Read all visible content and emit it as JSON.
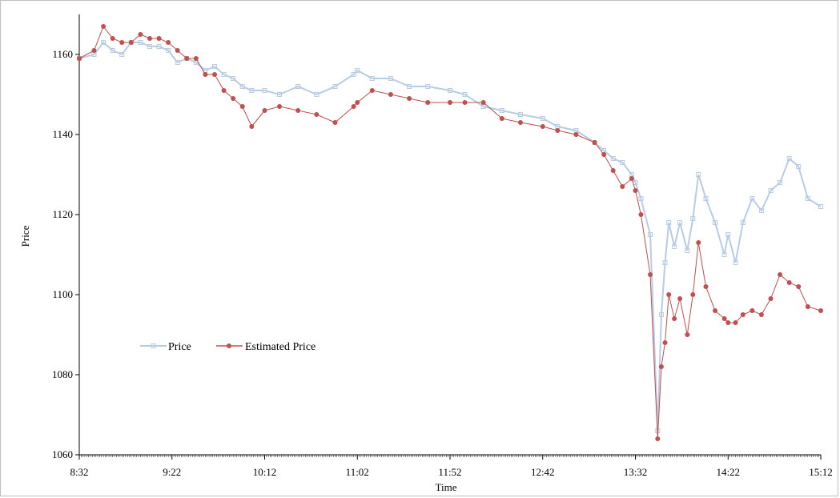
{
  "chart_data": {
    "type": "line",
    "title": "",
    "xlabel": "Time",
    "ylabel": "Price",
    "ylim": [
      1060,
      1170
    ],
    "y_ticks": [
      1060,
      1080,
      1100,
      1120,
      1140,
      1160
    ],
    "x_tick_labels": [
      "8:32",
      "9:22",
      "10:12",
      "11:02",
      "11:52",
      "12:42",
      "13:32",
      "14:22",
      "15:12"
    ],
    "x_range_minutes": [
      "8:32",
      "15:12"
    ],
    "grid": false,
    "legend_position": "left-middle",
    "series": [
      {
        "name": "Price",
        "color": "#b8cce4",
        "marker": "square",
        "x": [
          "8:32",
          "8:40",
          "8:45",
          "8:50",
          "8:55",
          "9:00",
          "9:05",
          "9:10",
          "9:15",
          "9:20",
          "9:25",
          "9:30",
          "9:35",
          "9:40",
          "9:45",
          "9:50",
          "9:55",
          "10:00",
          "10:05",
          "10:12",
          "10:20",
          "10:30",
          "10:40",
          "10:50",
          "11:00",
          "11:02",
          "11:10",
          "11:20",
          "11:30",
          "11:40",
          "11:52",
          "12:00",
          "12:10",
          "12:20",
          "12:30",
          "12:42",
          "12:50",
          "13:00",
          "13:10",
          "13:15",
          "13:20",
          "13:25",
          "13:30",
          "13:32",
          "13:35",
          "13:40",
          "13:44",
          "13:46",
          "13:48",
          "13:50",
          "13:53",
          "13:56",
          "14:00",
          "14:03",
          "14:06",
          "14:10",
          "14:15",
          "14:20",
          "14:22",
          "14:26",
          "14:30",
          "14:35",
          "14:40",
          "14:45",
          "14:50",
          "14:55",
          "15:00",
          "15:05",
          "15:12"
        ],
        "values": [
          1159,
          1160,
          1163,
          1161,
          1160,
          1163,
          1163,
          1162,
          1162,
          1161,
          1158,
          1159,
          1158,
          1156,
          1157,
          1155,
          1154,
          1152,
          1151,
          1151,
          1150,
          1152,
          1150,
          1152,
          1155,
          1156,
          1154,
          1154,
          1152,
          1152,
          1151,
          1150,
          1147,
          1146,
          1145,
          1144,
          1142,
          1141,
          1138,
          1136,
          1134,
          1133,
          1130,
          1128,
          1124,
          1115,
          1066,
          1095,
          1108,
          1118,
          1112,
          1118,
          1111,
          1119,
          1130,
          1124,
          1118,
          1110,
          1115,
          1108,
          1118,
          1124,
          1121,
          1126,
          1128,
          1134,
          1132,
          1124,
          1122
        ]
      },
      {
        "name": "Estimated Price",
        "color": "#c0504d",
        "marker": "circle",
        "x": [
          "8:32",
          "8:40",
          "8:45",
          "8:50",
          "8:55",
          "9:00",
          "9:05",
          "9:10",
          "9:15",
          "9:20",
          "9:25",
          "9:30",
          "9:35",
          "9:40",
          "9:45",
          "9:50",
          "9:55",
          "10:00",
          "10:05",
          "10:12",
          "10:20",
          "10:30",
          "10:40",
          "10:50",
          "11:00",
          "11:02",
          "11:10",
          "11:20",
          "11:30",
          "11:40",
          "11:52",
          "12:00",
          "12:10",
          "12:20",
          "12:30",
          "12:42",
          "12:50",
          "13:00",
          "13:10",
          "13:15",
          "13:20",
          "13:25",
          "13:30",
          "13:32",
          "13:35",
          "13:40",
          "13:44",
          "13:46",
          "13:48",
          "13:50",
          "13:53",
          "13:56",
          "14:00",
          "14:03",
          "14:06",
          "14:10",
          "14:15",
          "14:20",
          "14:22",
          "14:26",
          "14:30",
          "14:35",
          "14:40",
          "14:45",
          "14:50",
          "14:55",
          "15:00",
          "15:05",
          "15:12"
        ],
        "values": [
          1159,
          1161,
          1167,
          1164,
          1163,
          1163,
          1165,
          1164,
          1164,
          1163,
          1161,
          1159,
          1159,
          1155,
          1155,
          1151,
          1149,
          1147,
          1142,
          1146,
          1147,
          1146,
          1145,
          1143,
          1147,
          1148,
          1151,
          1150,
          1149,
          1148,
          1148,
          1148,
          1148,
          1144,
          1143,
          1142,
          1141,
          1140,
          1138,
          1135,
          1131,
          1127,
          1129,
          1126,
          1120,
          1105,
          1064,
          1082,
          1088,
          1100,
          1094,
          1099,
          1090,
          1100,
          1113,
          1102,
          1096,
          1094,
          1093,
          1093,
          1095,
          1096,
          1095,
          1099,
          1105,
          1103,
          1102,
          1097,
          1096
        ]
      }
    ]
  }
}
